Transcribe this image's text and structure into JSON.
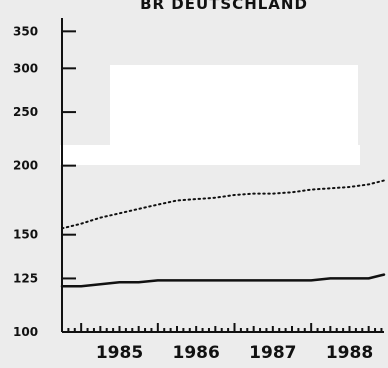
{
  "chart_data": {
    "type": "line",
    "title": "BR DEUTSCHLAND",
    "xlabel": "",
    "ylabel": "",
    "x_ticks": [
      "1985",
      "1986",
      "1987",
      "1988"
    ],
    "y_ticks": [
      100,
      125,
      150,
      200,
      250,
      300,
      350
    ],
    "y_scale": "log",
    "ylim": [
      100,
      370
    ],
    "xlim": [
      1984.75,
      1988.95
    ],
    "grid": false,
    "colors": {
      "line": "#111111",
      "background": "#ececec"
    },
    "series": [
      {
        "style": "dotted",
        "x": [
          1984.75,
          1985.0,
          1985.25,
          1985.5,
          1985.75,
          1986.0,
          1986.25,
          1986.5,
          1986.75,
          1987.0,
          1987.25,
          1987.5,
          1987.75,
          1988.0,
          1988.25,
          1988.5,
          1988.75,
          1988.95
        ],
        "values": [
          154,
          157,
          161,
          164,
          167,
          170,
          173,
          174,
          175,
          177,
          178,
          178,
          179,
          181,
          182,
          183,
          185,
          188
        ]
      },
      {
        "style": "solid",
        "x": [
          1984.75,
          1985.0,
          1985.25,
          1985.5,
          1985.75,
          1986.0,
          1986.25,
          1986.5,
          1986.75,
          1987.0,
          1987.25,
          1987.5,
          1987.75,
          1988.0,
          1988.25,
          1988.5,
          1988.75,
          1988.95
        ],
        "values": [
          121,
          121,
          122,
          123,
          123,
          124,
          124,
          124,
          124,
          124,
          124,
          124,
          124,
          124,
          125,
          125,
          125,
          127
        ]
      }
    ]
  }
}
